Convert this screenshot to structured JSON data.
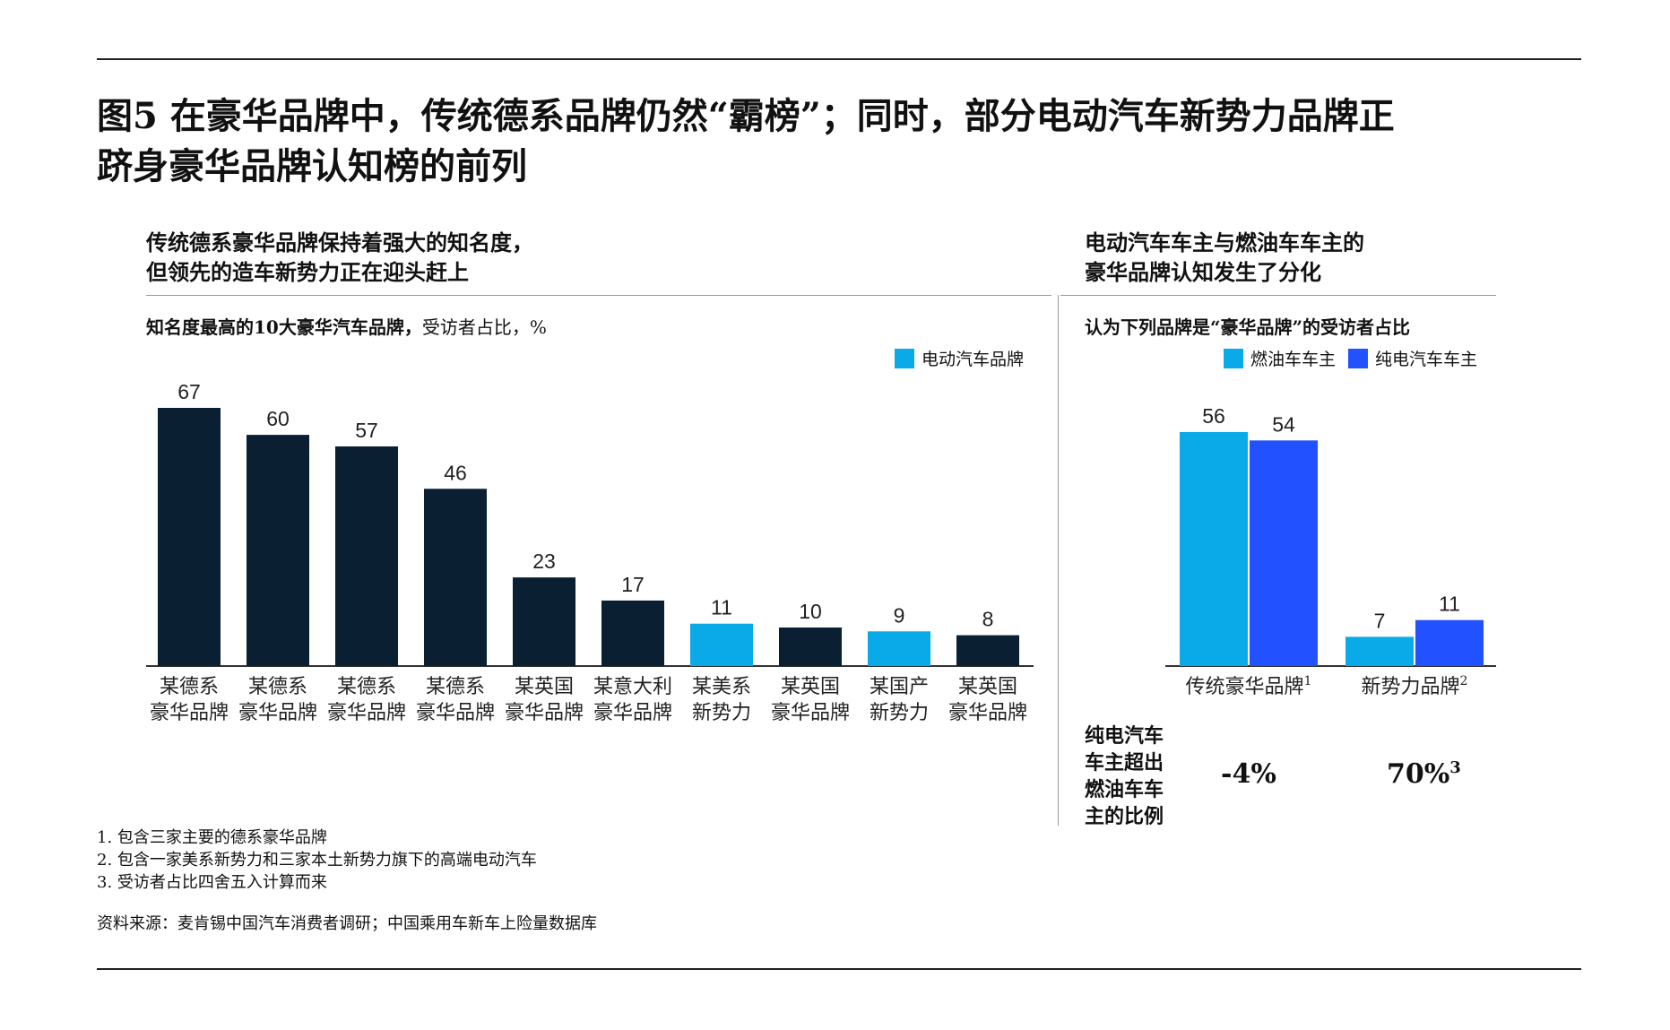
{
  "title": {
    "line1": "图5 在豪华品牌中，传统德系品牌仍然“霸榜”；同时，部分电动汽车新势力品牌正",
    "line2": "跻身豪华品牌认知榜的前列"
  },
  "left_panel": {
    "heading_line1": "传统德系豪华品牌保持着强大的知名度，",
    "heading_line2": "但领先的造车新势力正在迎头赶上",
    "subtitle_bold": "知名度最高的10大豪华汽车品牌，",
    "subtitle_rest": "受访者占比，%",
    "legend": "电动汽车品牌"
  },
  "right_panel": {
    "heading_line1": "电动汽车车主与燃油车车主的",
    "heading_line2": "豪华品牌认知发生了分化",
    "subtitle": "认为下列品牌是“豪华品牌”的受访者占比",
    "legend_ice": "燃油车车主",
    "legend_ev": "纯电汽车车主",
    "diff_label": [
      "纯电汽车",
      "车主超出",
      "燃油车车",
      "主的比例"
    ],
    "diff_values": [
      {
        "value": "-4%",
        "sup": ""
      },
      {
        "value": "70%",
        "sup": "3"
      }
    ]
  },
  "colors": {
    "dark": "#0b1f33",
    "electric": "#0aa9e8",
    "ice": "#0aa9e8",
    "ev": "#2251ff",
    "axis": "#333333"
  },
  "chart_data": [
    {
      "type": "bar",
      "title": "知名度最高的10大豪华汽车品牌，受访者占比，%",
      "categories": [
        [
          "某德系",
          "豪华品牌"
        ],
        [
          "某德系",
          "豪华品牌"
        ],
        [
          "某德系",
          "豪华品牌"
        ],
        [
          "某德系",
          "豪华品牌"
        ],
        [
          "某英国",
          "豪华品牌"
        ],
        [
          "某意大利",
          "豪华品牌"
        ],
        [
          "某美系",
          "新势力"
        ],
        [
          "某英国",
          "豪华品牌"
        ],
        [
          "某国产",
          "新势力"
        ],
        [
          "某英国",
          "豪华品牌"
        ]
      ],
      "values": [
        67,
        60,
        57,
        46,
        23,
        17,
        11,
        10,
        9,
        8
      ],
      "electric": [
        false,
        false,
        false,
        false,
        false,
        false,
        true,
        false,
        true,
        false
      ],
      "ylim": [
        0,
        70
      ],
      "grid": false,
      "legend": "电动汽车品牌"
    },
    {
      "type": "bar",
      "title": "认为下列品牌是“豪华品牌”的受访者占比",
      "categories": [
        {
          "label": "传统豪华品牌",
          "sup": "1"
        },
        {
          "label": "新势力品牌",
          "sup": "2"
        }
      ],
      "series": [
        {
          "name": "燃油车车主",
          "values": [
            56,
            7
          ]
        },
        {
          "name": "纯电汽车车主",
          "values": [
            54,
            11
          ]
        }
      ],
      "ylim": [
        0,
        70
      ],
      "grid": false
    }
  ],
  "footnotes": [
    "1.  包含三家主要的德系豪华品牌",
    "2.  包含一家美系新势力和三家本土新势力旗下的高端电动汽车",
    "3.  受访者占比四舍五入计算而来"
  ],
  "source": "资料来源：麦肯锡中国汽车消费者调研；中国乘用车新车上险量数据库"
}
